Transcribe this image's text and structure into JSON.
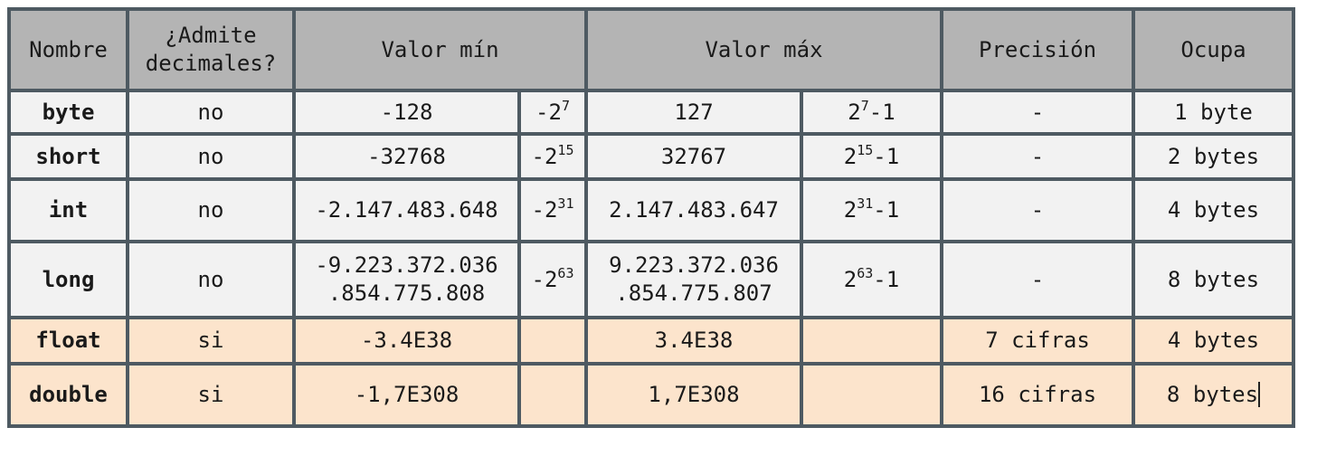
{
  "headers": {
    "nombre": "Nombre",
    "decimales_line1": "¿Admite",
    "decimales_line2": "decimales?",
    "valor_min": "Valor mín",
    "valor_max": "Valor máx",
    "precision": "Precisión",
    "ocupa": "Ocupa"
  },
  "rows": [
    {
      "nombre": "byte",
      "decimales": "no",
      "min": "-128",
      "min_base": "-2",
      "min_exp": "7",
      "max": "127",
      "max_base": "2",
      "max_exp": "7",
      "max_suffix": "-1",
      "precision": "-",
      "ocupa": "1 byte"
    },
    {
      "nombre": "short",
      "decimales": "no",
      "min": "-32768",
      "min_base": "-2",
      "min_exp": "15",
      "max": "32767",
      "max_base": "2",
      "max_exp": "15",
      "max_suffix": "-1",
      "precision": "-",
      "ocupa": "2 bytes"
    },
    {
      "nombre": "int",
      "decimales": "no",
      "min": "-2.147.483.648",
      "min_base": "-2",
      "min_exp": "31",
      "max": "2.147.483.647",
      "max_base": "2",
      "max_exp": "31",
      "max_suffix": "-1",
      "precision": "-",
      "ocupa": "4 bytes"
    },
    {
      "nombre": "long",
      "decimales": "no",
      "min_line1": "-9.223.372.036",
      "min_line2": ".854.775.808",
      "min_base": "-2",
      "min_exp": "63",
      "max_line1": "9.223.372.036",
      "max_line2": ".854.775.807",
      "max_base": "2",
      "max_exp": "63",
      "max_suffix": "-1",
      "precision": "-",
      "ocupa": "8 bytes"
    },
    {
      "nombre": "float",
      "decimales": "si",
      "min": "-3.4E38",
      "max": "3.4E38",
      "precision": "7 cifras",
      "ocupa": "4 bytes"
    },
    {
      "nombre": "double",
      "decimales": "si",
      "min": "-1,7E308",
      "max": "1,7E308",
      "precision": "16 cifras",
      "ocupa": "8 bytes"
    }
  ],
  "colors": {
    "header_bg": "#b4b4b4",
    "integer_rows_bg": "#f2f2f2",
    "real_rows_bg": "#fce4cc",
    "border": "#4e5a62"
  }
}
